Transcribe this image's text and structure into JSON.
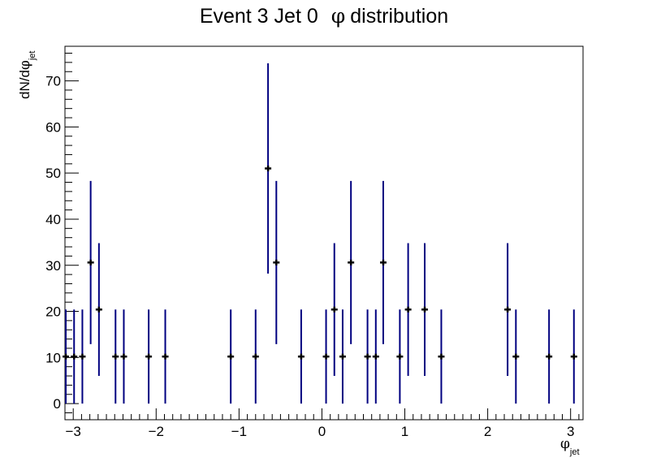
{
  "chart_data": {
    "type": "scatter",
    "title_main": "Event 3 Jet 0",
    "title_symbol": "φ",
    "title_suffix": "distribution",
    "xlabel_symbol": "φ",
    "xlabel_sub": "jet",
    "ylabel_prefix": "dN/d",
    "ylabel_symbol": "φ",
    "ylabel_sub": "jet",
    "xlim": [
      -3.1,
      3.15
    ],
    "ylim": [
      -3.5,
      77.5
    ],
    "x_ticks": [
      -3,
      -2,
      -1,
      0,
      1,
      2,
      3
    ],
    "x_tick_labels": [
      "−3",
      "−2",
      "−1",
      "0",
      "1",
      "2",
      "3"
    ],
    "y_ticks": [
      0,
      10,
      20,
      30,
      40,
      50,
      60,
      70
    ],
    "y_tick_labels": [
      "0",
      "10",
      "20",
      "30",
      "40",
      "50",
      "60",
      "70"
    ],
    "error_color": "#000080",
    "marker_color": "#000000",
    "points": [
      {
        "x": -3.09,
        "y": 10.2,
        "err": 10.2
      },
      {
        "x": -2.99,
        "y": 10.2,
        "err": 10.2
      },
      {
        "x": -2.89,
        "y": 10.2,
        "err": 10.2
      },
      {
        "x": -2.79,
        "y": 30.6,
        "err": 17.7
      },
      {
        "x": -2.69,
        "y": 20.4,
        "err": 14.4
      },
      {
        "x": -2.49,
        "y": 10.2,
        "err": 10.2
      },
      {
        "x": -2.39,
        "y": 10.2,
        "err": 10.2
      },
      {
        "x": -2.09,
        "y": 10.2,
        "err": 10.2
      },
      {
        "x": -1.89,
        "y": 10.2,
        "err": 10.2
      },
      {
        "x": -1.1,
        "y": 10.2,
        "err": 10.2
      },
      {
        "x": -0.8,
        "y": 10.2,
        "err": 10.2
      },
      {
        "x": -0.65,
        "y": 51.0,
        "err": 22.8
      },
      {
        "x": -0.55,
        "y": 30.6,
        "err": 17.7
      },
      {
        "x": -0.25,
        "y": 10.2,
        "err": 10.2
      },
      {
        "x": 0.05,
        "y": 10.2,
        "err": 10.2
      },
      {
        "x": 0.15,
        "y": 20.4,
        "err": 14.4
      },
      {
        "x": 0.25,
        "y": 10.2,
        "err": 10.2
      },
      {
        "x": 0.35,
        "y": 30.6,
        "err": 17.7
      },
      {
        "x": 0.55,
        "y": 10.2,
        "err": 10.2
      },
      {
        "x": 0.65,
        "y": 10.2,
        "err": 10.2
      },
      {
        "x": 0.74,
        "y": 30.6,
        "err": 17.7
      },
      {
        "x": 0.94,
        "y": 10.2,
        "err": 10.2
      },
      {
        "x": 1.04,
        "y": 20.4,
        "err": 14.4
      },
      {
        "x": 1.24,
        "y": 20.4,
        "err": 14.4
      },
      {
        "x": 1.44,
        "y": 10.2,
        "err": 10.2
      },
      {
        "x": 2.24,
        "y": 20.4,
        "err": 14.4
      },
      {
        "x": 2.34,
        "y": 10.2,
        "err": 10.2
      },
      {
        "x": 2.74,
        "y": 10.2,
        "err": 10.2
      },
      {
        "x": 3.04,
        "y": 10.2,
        "err": 10.2
      }
    ]
  }
}
